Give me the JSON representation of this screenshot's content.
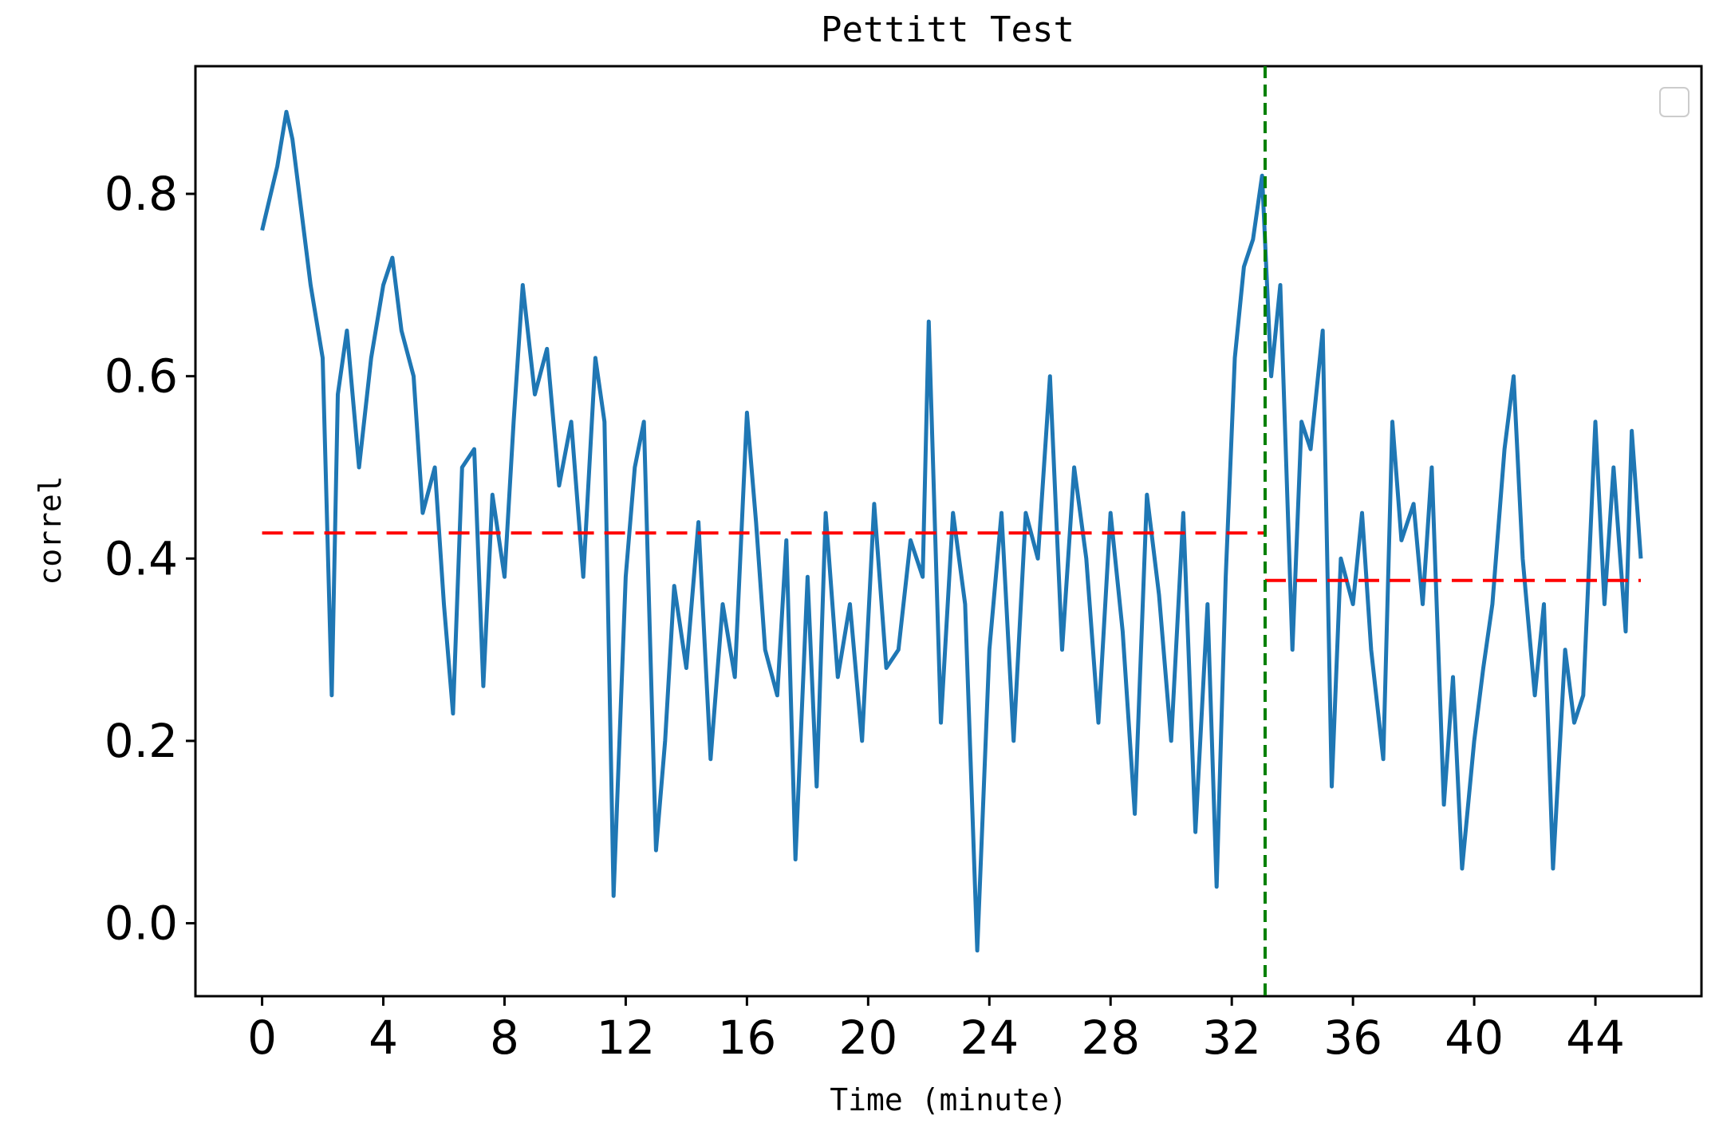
{
  "chart_data": {
    "type": "line",
    "title": "Pettitt Test",
    "xlabel": "Time (minute)",
    "ylabel": "correl",
    "xlim": [
      -2.2,
      47.5
    ],
    "ylim": [
      -0.08,
      0.94
    ],
    "xticks": [
      0,
      4,
      8,
      12,
      16,
      20,
      24,
      28,
      32,
      36,
      40,
      44
    ],
    "yticks": [
      0.0,
      0.2,
      0.4,
      0.6,
      0.8
    ],
    "ytick_labels": [
      "0.0",
      "0.2",
      "0.4",
      "0.6",
      "0.8"
    ],
    "grid": false,
    "legend": {
      "placement": "top-right",
      "entries": []
    },
    "colors": {
      "series": "#1f77b4",
      "mean": "#ff0000",
      "changepoint": "#008000"
    },
    "series": [
      {
        "x": [
          0,
          0.5,
          0.8,
          1,
          1.3,
          1.6,
          2,
          2.3,
          2.5,
          2.8,
          3.2,
          3.6,
          4,
          4.3,
          4.6,
          5,
          5.3,
          5.7,
          6,
          6.3,
          6.6,
          7,
          7.3,
          7.6,
          8,
          8.3,
          8.6,
          9,
          9.4,
          9.8,
          10.2,
          10.6,
          11,
          11.3,
          11.6,
          12,
          12.3,
          12.6,
          13,
          13.3,
          13.6,
          14,
          14.4,
          14.8,
          15.2,
          15.6,
          16,
          16.3,
          16.6,
          17,
          17.3,
          17.6,
          18,
          18.3,
          18.6,
          19,
          19.4,
          19.8,
          20.2,
          20.6,
          21,
          21.4,
          21.8,
          22,
          22.4,
          22.8,
          23.2,
          23.6,
          24,
          24.4,
          24.8,
          25.2,
          25.6,
          26,
          26.4,
          26.8,
          27.2,
          27.6,
          28,
          28.4,
          28.8,
          29.2,
          29.6,
          30,
          30.4,
          30.8,
          31.2,
          31.5,
          31.8,
          32.1,
          32.4,
          32.7,
          33,
          33.3,
          33.6,
          34,
          34.3,
          34.6,
          35,
          35.3,
          35.6,
          36,
          36.3,
          36.6,
          37,
          37.3,
          37.6,
          38,
          38.3,
          38.6,
          39,
          39.3,
          39.6,
          40,
          40.3,
          40.6,
          41,
          41.3,
          41.6,
          42,
          42.3,
          42.6,
          43,
          43.3,
          43.6,
          44,
          44.3,
          44.6,
          45,
          45.2,
          45.5
        ],
        "y": [
          0.76,
          0.83,
          0.89,
          0.86,
          0.78,
          0.7,
          0.62,
          0.25,
          0.58,
          0.65,
          0.5,
          0.62,
          0.7,
          0.73,
          0.65,
          0.6,
          0.45,
          0.5,
          0.35,
          0.23,
          0.5,
          0.52,
          0.26,
          0.47,
          0.38,
          0.55,
          0.7,
          0.58,
          0.63,
          0.48,
          0.55,
          0.38,
          0.62,
          0.55,
          0.03,
          0.38,
          0.5,
          0.55,
          0.08,
          0.2,
          0.37,
          0.28,
          0.44,
          0.18,
          0.35,
          0.27,
          0.56,
          0.44,
          0.3,
          0.25,
          0.42,
          0.07,
          0.38,
          0.15,
          0.45,
          0.27,
          0.35,
          0.2,
          0.46,
          0.28,
          0.3,
          0.42,
          0.38,
          0.66,
          0.22,
          0.45,
          0.35,
          -0.03,
          0.3,
          0.45,
          0.2,
          0.45,
          0.4,
          0.6,
          0.3,
          0.5,
          0.4,
          0.22,
          0.45,
          0.32,
          0.12,
          0.47,
          0.36,
          0.2,
          0.45,
          0.1,
          0.35,
          0.04,
          0.38,
          0.62,
          0.72,
          0.75,
          0.82,
          0.6,
          0.7,
          0.3,
          0.55,
          0.52,
          0.65,
          0.15,
          0.4,
          0.35,
          0.45,
          0.3,
          0.18,
          0.55,
          0.42,
          0.46,
          0.35,
          0.5,
          0.13,
          0.27,
          0.06,
          0.2,
          0.28,
          0.35,
          0.52,
          0.6,
          0.4,
          0.25,
          0.35,
          0.06,
          0.3,
          0.22,
          0.25,
          0.55,
          0.35,
          0.5,
          0.32,
          0.54,
          0.4
        ]
      }
    ],
    "mean_segments": [
      {
        "x": [
          0,
          33.1
        ],
        "y": 0.428
      },
      {
        "x": [
          33.1,
          45.5
        ],
        "y": 0.376
      }
    ],
    "changepoint_x": 33.1
  }
}
